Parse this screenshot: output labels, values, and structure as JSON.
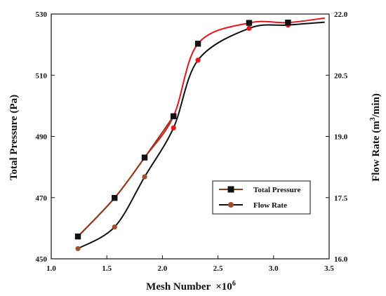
{
  "chart_data": {
    "type": "line",
    "title": "",
    "xlabel": "Mesh Number",
    "xlabel_suffix": "×10",
    "xlabel_exponent": "6",
    "ylabel_left": "Total Pressure (Pa)",
    "ylabel_right_prefix": "Flow Rate (m",
    "ylabel_right_sup": "3",
    "ylabel_right_suffix": "/min)",
    "xlim": [
      1.0,
      3.5
    ],
    "ylim_left": [
      450,
      530
    ],
    "ylim_right": [
      16.0,
      22.0
    ],
    "x_ticks": [
      "1.0",
      "1.5",
      "2.0",
      "2.5",
      "3.0",
      "3.5"
    ],
    "y_left_ticks": [
      "450",
      "470",
      "490",
      "510",
      "530"
    ],
    "y_right_ticks": [
      "16.0",
      "17.5",
      "19.0",
      "20.5",
      "22.0"
    ],
    "grid": false,
    "legend_position": "lower-right",
    "series": [
      {
        "name": "Total  Pressure",
        "axis": "left",
        "line_color": "#e8141c",
        "lower_line_color": "#8b3a1a",
        "marker": "square",
        "marker_color": "#111111",
        "x": [
          1.24,
          1.57,
          1.84,
          2.1,
          2.32,
          2.78,
          3.13
        ],
        "y": [
          457.3,
          469.9,
          483.1,
          496.6,
          520.3,
          527.1,
          527.2
        ]
      },
      {
        "name": "Flow Rate",
        "axis": "right",
        "line_color": "#111111",
        "marker": "circle",
        "marker_color": "#a0522d",
        "x": [
          1.24,
          1.57,
          1.84,
          2.1,
          2.32,
          2.78,
          3.13
        ],
        "y": [
          16.25,
          16.78,
          18.01,
          19.21,
          20.87,
          21.65,
          21.73
        ]
      }
    ],
    "extra_markers": {
      "color": "#e8141c",
      "axis": "right",
      "x": [
        2.1,
        2.32,
        2.78,
        3.13
      ],
      "y": [
        19.21,
        20.87,
        21.65,
        21.73
      ]
    },
    "curve_end": {
      "x": 3.46,
      "pressure": 528.7,
      "flow": 21.8
    }
  }
}
